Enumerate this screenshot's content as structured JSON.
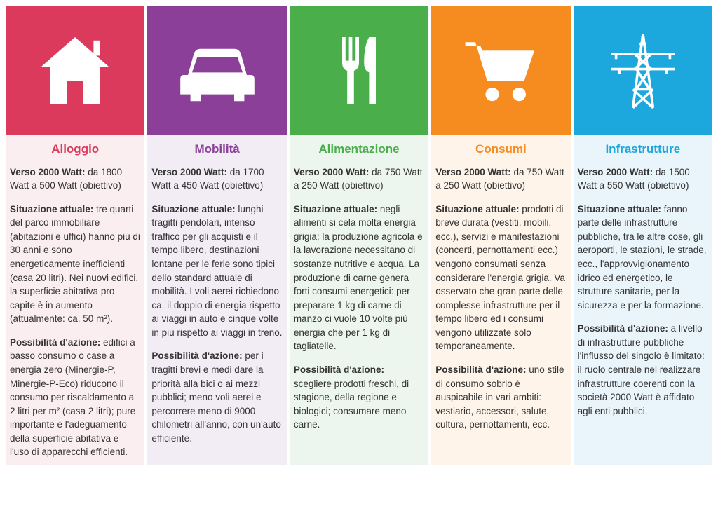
{
  "columns": [
    {
      "id": "alloggio",
      "title": "Alloggio",
      "icon": "house-icon",
      "icon_color": "#dc3a5d",
      "title_color": "#dc3a5d",
      "bg_color": "#fbeef0",
      "verso2000_label": "Verso 2000 Watt:",
      "verso2000_text": " da 1800 Watt a 500 Watt (obiettivo)",
      "situazione_label": "Situazione attuale:",
      "situazione_text": " tre quarti del parco immobiliare (abitazioni e uffici) hanno più di 30 anni e sono energeticamente inefficienti (casa 20 litri). Nei nuovi edifici, la superficie abitativa pro capite è in aumento (attualmente: ca. 50 m²).",
      "possibilita_label": "Possibilità d'azione:",
      "possibilita_text": " edifici a basso consumo o case a energia zero (Minergie-P, Minergie-P-Eco) riducono il consumo per riscaldamento a 2 litri per m² (casa 2 litri); pure importante è l'adeguamento della superficie abitativa e l'uso di apparecchi efficienti."
    },
    {
      "id": "mobilita",
      "title": "Mobilità",
      "icon": "car-icon",
      "icon_color": "#8b3f98",
      "title_color": "#8b3f98",
      "bg_color": "#f2edf4",
      "verso2000_label": "Verso 2000 Watt:",
      "verso2000_text": " da 1700 Watt a 450 Watt (obiettivo)",
      "situazione_label": "Situazione attuale:",
      "situazione_text": " lunghi tragitti pendolari, intenso traffico per gli acquisti e il tempo libero, destinazioni lontane per le ferie sono tipici dello standard attuale di mobilità. I voli aerei richiedono ca. il doppio di energia rispetto ai viaggi in auto e cinque volte in più rispetto ai viaggi in treno.",
      "possibilita_label": "Possibilità d'azione:",
      "possibilita_text": " per i tragitti brevi e medi dare la priorità alla bici o ai mezzi pubblici; meno voli aerei e percorrere meno di 9000 chilometri all'anno, con un'auto efficiente."
    },
    {
      "id": "alimentazione",
      "title": "Alimentazione",
      "icon": "fork-knife-icon",
      "icon_color": "#4aae4b",
      "title_color": "#4aae4b",
      "bg_color": "#edf6ee",
      "verso2000_label": "Verso 2000 Watt:",
      "verso2000_text": " da 750 Watt a 250 Watt (obiettivo)",
      "situazione_label": "Situazione attuale:",
      "situazione_text": " negli alimenti si cela molta energia grigia; la produzione agricola e la lavorazione necessitano di sostanze nutritive e acqua. La produzione di carne genera forti consumi energetici: per preparare 1 kg di carne di manzo ci vuole 10 volte più energia che per 1 kg di tagliatelle.",
      "possibilita_label": "Possibilità d'azione:",
      "possibilita_text": " scegliere prodotti freschi, di stagione, della regione e biologici; consumare meno carne."
    },
    {
      "id": "consumi",
      "title": "Consumi",
      "icon": "cart-icon",
      "icon_color": "#f68b1f",
      "title_color": "#f68b1f",
      "bg_color": "#fef4ea",
      "verso2000_label": "Verso 2000 Watt:",
      "verso2000_text": " da 750 Watt a 250 Watt (obiettivo)",
      "situazione_label": "Situazione attuale:",
      "situazione_text": " prodotti di breve durata (vestiti, mobili, ecc.), servizi e manifestazioni (concerti, pernottamenti ecc.) vengono consumati senza considerare l'energia grigia. Va osservato che gran parte delle complesse infrastrutture per il tempo libero ed i consumi vengono utilizzate solo temporaneamente.",
      "possibilita_label": "Possibilità d'azione:",
      "possibilita_text": " uno stile di consumo sobrio è auspicabile in vari ambiti: vestiario, accessori, salute, cultura, pernottamenti, ecc."
    },
    {
      "id": "infrastrutture",
      "title": "Infrastrutture",
      "icon": "pylon-icon",
      "icon_color": "#1ca7dd",
      "title_color": "#1ca7dd",
      "bg_color": "#e9f5fb",
      "verso2000_label": "Verso 2000 Watt:",
      "verso2000_text": " da 1500 Watt a 550 Watt (obiettivo)",
      "situazione_label": "Situazione attuale:",
      "situazione_text": " fanno parte delle infrastrutture pubbliche, tra le altre cose, gli aeroporti, le stazioni, le strade, ecc., l'approvvigionamento idrico ed energetico, le strutture sanitarie, per la sicurezza e per la formazione.",
      "possibilita_label": "Possibilità d'azione:",
      "possibilita_text": " a livello di infrastrutture pubbliche l'influsso del singolo è limitato: il ruolo centrale nel realizzare infrastrutture coerenti con la società 2000 Watt è affidato agli enti pubblici."
    }
  ]
}
